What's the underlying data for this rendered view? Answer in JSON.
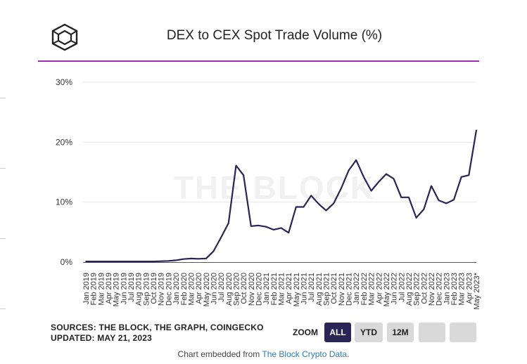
{
  "title": "DEX to CEX Spot Trade Volume (%)",
  "watermark": "THE BLOCK",
  "sources_line1": "SOURCES: THE BLOCK, THE GRAPH, COINGECKO",
  "sources_line2": "UPDATED: MAY 21, 2023",
  "zoom": {
    "label": "ZOOM",
    "buttons": [
      {
        "label": "ALL",
        "active": true
      },
      {
        "label": "YTD",
        "active": false
      },
      {
        "label": "12M",
        "active": false
      },
      {
        "label": "",
        "active": false
      },
      {
        "label": "",
        "active": false
      }
    ]
  },
  "footer": {
    "prefix": "Chart embedded from ",
    "link": "The Block Crypto Data",
    "suffix": "."
  },
  "colors": {
    "line": "#2b2456",
    "accent": "#9b2fae",
    "grid": "#e6e6e6"
  },
  "chart_data": {
    "type": "line",
    "title": "DEX to CEX Spot Trade Volume (%)",
    "xlabel": "",
    "ylabel": "",
    "ylim": [
      0,
      30
    ],
    "yticks": [
      0,
      10,
      20,
      30
    ],
    "ytick_labels": [
      "0%",
      "10%",
      "20%",
      "30%"
    ],
    "grid": true,
    "categories": [
      "Jan 2019",
      "Feb 2019",
      "Mar 2019",
      "Apr 2019",
      "May 2019",
      "Jun 2019",
      "Jul 2019",
      "Aug 2019",
      "Sep 2019",
      "Oct 2019",
      "Nov 2019",
      "Dec 2019",
      "Jan 2020",
      "Feb 2020",
      "Mar 2020",
      "Apr 2020",
      "May 2020",
      "Jun 2020",
      "Jul 2020",
      "Aug 2020",
      "Sep 2020",
      "Oct 2020",
      "Nov 2020",
      "Dec 2020",
      "Jan 2021",
      "Feb 2021",
      "Mar 2021",
      "Apr 2021",
      "May 2021",
      "Jun 2021",
      "Jul 2021",
      "Aug 2021",
      "Sep 2021",
      "Oct 2021",
      "Nov 2021",
      "Dec 2021",
      "Jan 2022",
      "Feb 2022",
      "Mar 2022",
      "Apr 2022",
      "May 2022",
      "Jun 2022",
      "Jul 2022",
      "Aug 2022",
      "Sep 2022",
      "Oct 2022",
      "Nov 2022",
      "Dec 2022",
      "Jan 2023",
      "Feb 2023",
      "Mar 2023",
      "Apr 2023",
      "May 2023*"
    ],
    "series": [
      {
        "name": "DEX to CEX Spot Trade Volume (%)",
        "values": [
          0.1,
          0.1,
          0.1,
          0.1,
          0.1,
          0.1,
          0.1,
          0.1,
          0.1,
          0.1,
          0.15,
          0.2,
          0.3,
          0.5,
          0.6,
          0.55,
          0.6,
          1.8,
          4.1,
          6.5,
          16.1,
          14.5,
          6.0,
          6.1,
          5.9,
          5.4,
          5.7,
          4.9,
          9.2,
          9.2,
          11.1,
          9.7,
          8.6,
          9.8,
          12.3,
          15.3,
          17.0,
          14.2,
          11.9,
          13.4,
          14.7,
          13.9,
          10.8,
          10.8,
          7.4,
          8.8,
          12.7,
          10.3,
          9.8,
          10.4,
          14.2,
          14.5,
          22.0
        ]
      }
    ]
  }
}
